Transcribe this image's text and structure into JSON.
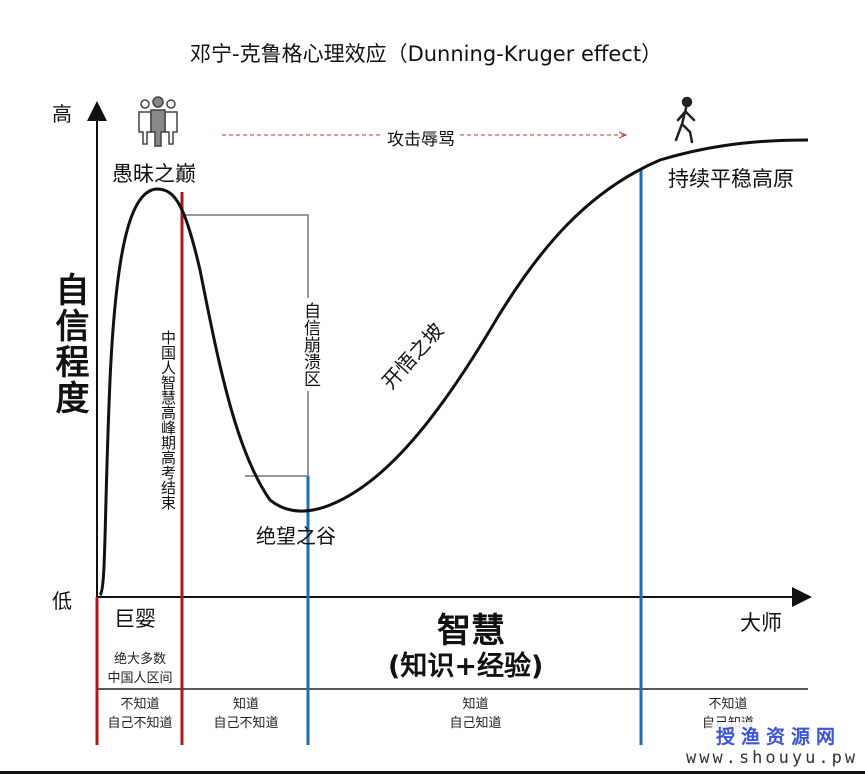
{
  "title": "邓宁-克鲁格心理效应（Dunning-Kruger effect）",
  "y_axis": {
    "label": "自信程度",
    "high": "高",
    "low": "低"
  },
  "x_axis": {
    "label": "智慧",
    "sublabel": "(知识+经验)",
    "start": "巨婴",
    "end": "大师"
  },
  "stages": {
    "peak": "愚昧之巅",
    "valley": "绝望之谷",
    "slope": "开悟之坡",
    "plateau": "持续平稳高原",
    "collapse": "自信崩溃区",
    "attack": "攻击辱骂",
    "gaokao": "中国人智慧高峰期高考结束"
  },
  "region_note": [
    "绝大多数",
    "中国人区间"
  ],
  "quadrants": [
    [
      "不知道",
      "自己不知道"
    ],
    [
      "知道",
      "自己不知道"
    ],
    [
      "知道",
      "自己知道"
    ],
    [
      "不知道",
      "自己知道"
    ]
  ],
  "watermark": {
    "name": "授渔资源网",
    "url": "www.shouyu.pw"
  },
  "colors": {
    "red": "#b0141c",
    "blue": "#1f6db3",
    "curve": "#111111",
    "dash": "#c0392b"
  }
}
